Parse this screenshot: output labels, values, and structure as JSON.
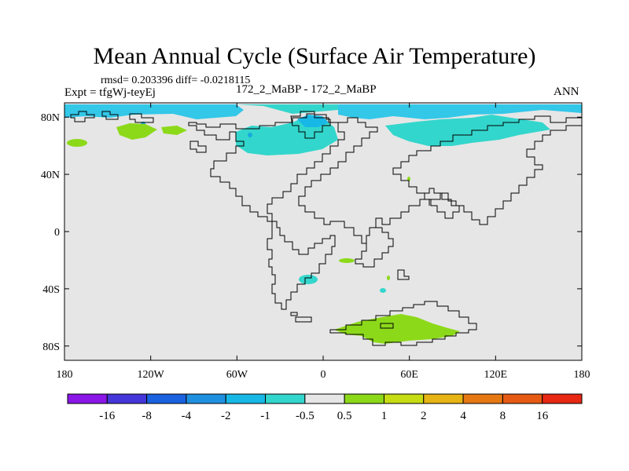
{
  "title": "Mean Annual Cycle (Surface Air Temperature)",
  "stats": {
    "rmsd_label": "rmsd=",
    "rmsd": "0.203396",
    "diff_label": "diff=",
    "diff": "-0.0218115"
  },
  "expt": "Expt = tfgWj-teyEj",
  "case": "172_2_MaBP - 172_2_MaBP",
  "season": "ANN",
  "colors": {
    "neutral": "#e6e6e6",
    "cyan": "#33d6cc",
    "light_blue": "#33c7e8",
    "blue_mid": "#18a9e0",
    "green": "#8cd91a",
    "coast": "#000000"
  },
  "axes": {
    "lon_ticks": [
      "180",
      "120W",
      "60W",
      "0",
      "60E",
      "120E",
      "180"
    ],
    "lat_ticks": [
      "80N",
      "40N",
      "0",
      "40S",
      "80S"
    ],
    "lon_range": [
      -180,
      180
    ],
    "lat_range": [
      -90,
      90
    ]
  },
  "colorbar": {
    "labels": [
      "-16",
      "-8",
      "-4",
      "-2",
      "-1",
      "-0.5",
      "0.5",
      "1",
      "2",
      "4",
      "8",
      "16"
    ],
    "colors": [
      "#8a17e6",
      "#4436d9",
      "#1a62e0",
      "#1f90e0",
      "#18b8e6",
      "#33d6cc",
      "#e6e6e6",
      "#8cd91a",
      "#c6dc14",
      "#e6b414",
      "#e67814",
      "#e65a14",
      "#e62814"
    ]
  }
}
